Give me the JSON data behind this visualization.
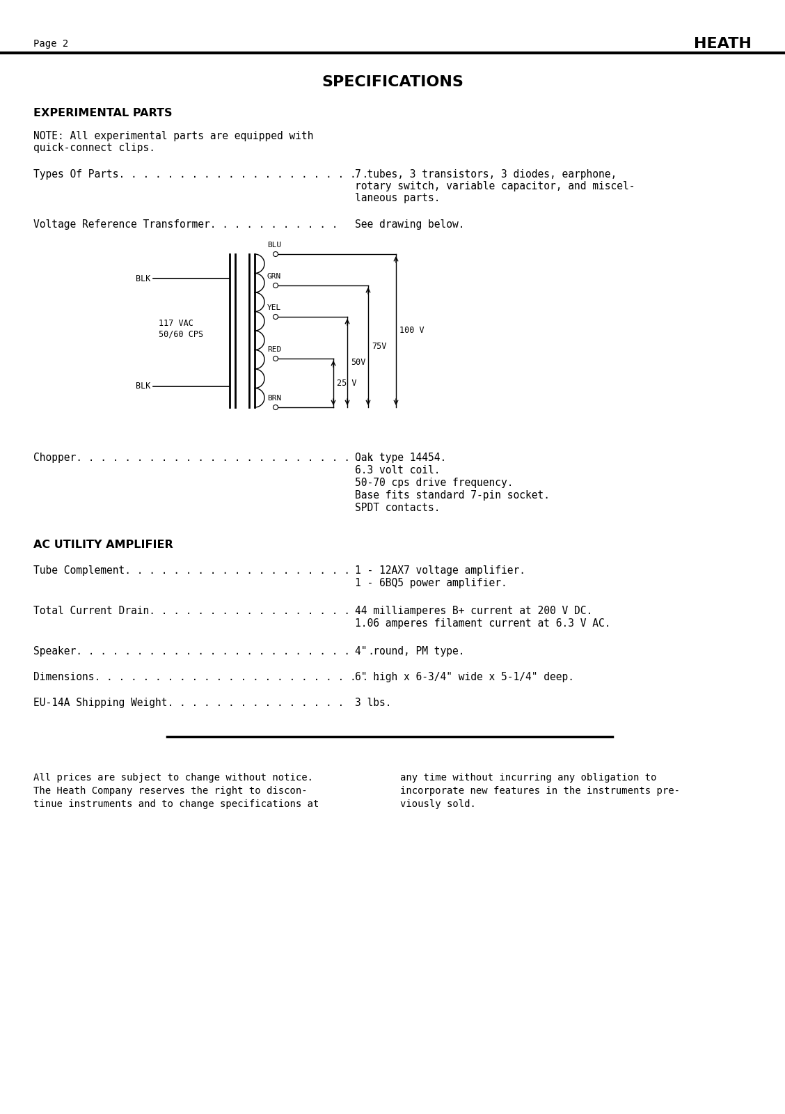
{
  "bg_color": "#ffffff",
  "text_color": "#000000",
  "page_label": "Page 2",
  "brand": "HEATH",
  "title": "SPECIFICATIONS",
  "section1_header": "EXPERIMENTAL PARTS",
  "note_line1": "NOTE: All experimental parts are equipped with",
  "note_line2": "quick-connect clips.",
  "types_label": "Types Of Parts. . . . . . . . . . . . . . . . . . . . .",
  "types_val1": "7 tubes, 3 transistors, 3 diodes, earphone,",
  "types_val2": "rotary switch, variable capacitor, and miscel-",
  "types_val3": "laneous parts.",
  "vrt_label": "Voltage Reference Transformer. . . . . . . . . . .",
  "vrt_val": "See drawing below.",
  "chopper_label": "Chopper. . . . . . . . . . . . . . . . . . . . . . . . . .",
  "chopper_val1": "Oak type 14454.",
  "chopper_val2": "6.3 volt coil.",
  "chopper_val3": "50-70 cps drive frequency.",
  "chopper_val4": "Base fits standard 7-pin socket.",
  "chopper_val5": "SPDT contacts.",
  "section2_header": "AC UTILITY AMPLIFIER",
  "tc_label": "Tube Complement. . . . . . . . . . . . . . . . . . .",
  "tc_val1": "1 - 12AX7 voltage amplifier.",
  "tc_val2": "1 - 6BQ5 power amplifier.",
  "tcd_label": "Total Current Drain. . . . . . . . . . . . . . . . . .",
  "tcd_val1": "44 milliamperes B+ current at 200 V DC.",
  "tcd_val2": "1.06 amperes filament current at 6.3 V AC.",
  "spk_label": "Speaker. . . . . . . . . . . . . . . . . . . . . . . . . .",
  "spk_val": "4\" round, PM type.",
  "dim_label": "Dimensions. . . . . . . . . . . . . . . . . . . . . . . .",
  "dim_val": "6\" high x 6-3/4\" wide x 5-1/4\" deep.",
  "sw_label": "EU-14A Shipping Weight. . . . . . . . . . . . . . .",
  "sw_val": "3 lbs.",
  "footer_l1": "All prices are subject to change without notice.",
  "footer_l2": "The Heath Company reserves the right to discon-",
  "footer_l3": "tinue instruments and to change specifications at",
  "footer_r1": "any time without incurring any obligation to",
  "footer_r2": "incorporate new features in the instruments pre-",
  "footer_r3": "viously sold."
}
